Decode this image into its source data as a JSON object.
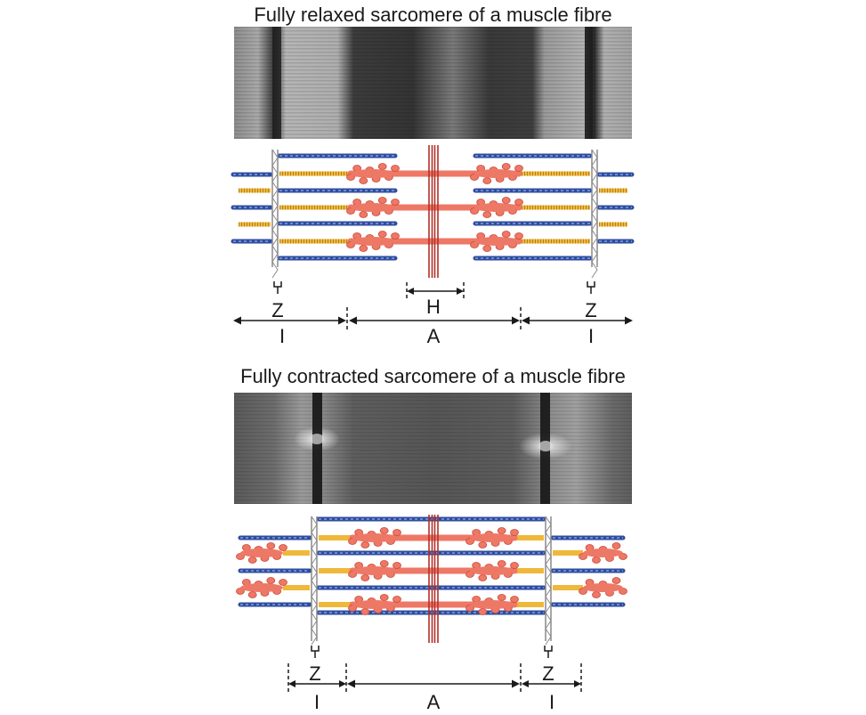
{
  "relaxed": {
    "title": "Fully relaxed sarcomere of a muscle fibre",
    "labels": {
      "z_left": "Z",
      "z_right": "Z",
      "h": "H",
      "i_left": "I",
      "a": "A",
      "i_right": "I"
    }
  },
  "contracted": {
    "title": "Fully contracted sarcomere of a muscle fibre",
    "labels": {
      "z_left": "Z",
      "z_right": "Z",
      "i_left": "I",
      "a": "A",
      "i_right": "I"
    }
  },
  "colors": {
    "actin": "#2e4d9c",
    "titin": "#f0b83a",
    "myosin": "#ee7866",
    "z_disc": "#8a8a8a",
    "m_line": "#b0302a"
  }
}
